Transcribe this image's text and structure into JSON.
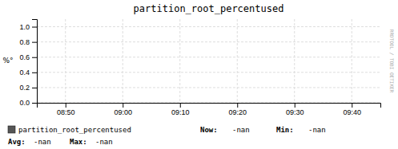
{
  "chart_data": {
    "type": "line",
    "title": "partition_root_percentused",
    "y_label": "%°",
    "categories": [
      "08:50",
      "09:00",
      "09:10",
      "09:20",
      "09:30",
      "09:40"
    ],
    "series": [
      {
        "name": "partition_root_percentused",
        "color": "#555555",
        "values": [
          null,
          null,
          null,
          null,
          null,
          null
        ]
      }
    ],
    "ylim": [
      0.0,
      1.1
    ],
    "yticks": [
      {
        "value": 0.0,
        "label": "0.0"
      },
      0.2,
      0.4,
      0.6,
      0.8,
      {
        "value": 1.0,
        "label": "1.0"
      }
    ],
    "grid": true,
    "annotations": [
      "Now:",
      "-nan",
      "Min:",
      "-nan",
      "Avg:",
      "-nan",
      "Max:",
      "-nan",
      "RRDTOOL / TOBI OETIKER"
    ]
  }
}
